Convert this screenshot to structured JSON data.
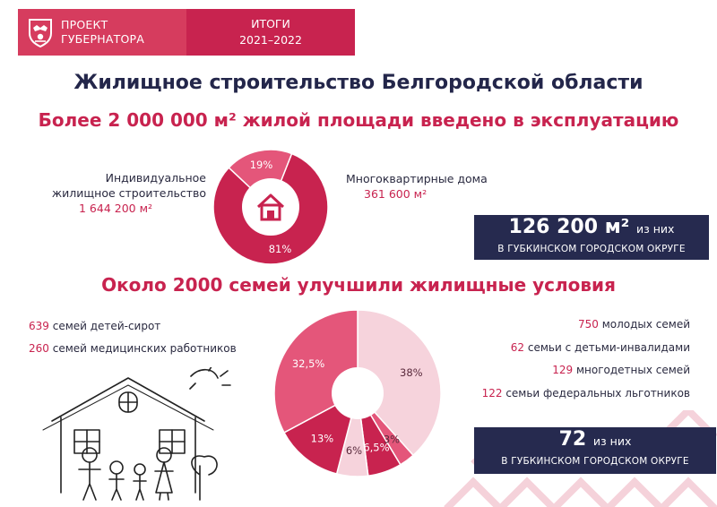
{
  "header": {
    "project_line1": "ПРОЕКТ",
    "project_line2": "ГУБЕРНАТОРА",
    "results_line1": "ИТОГИ",
    "results_line2": "2021–2022"
  },
  "title": "Жилищное строительство Белгородской области",
  "section1": {
    "title": "Более 2 000 000 м² жилой площади введено в эксплуатацию",
    "individual_label_line1": "Индивидуальное",
    "individual_label_line2": "жилищное строительство",
    "individual_value": "1 644 200 м²",
    "apartments_label": "Многоквартирные дома",
    "apartments_value": "361 600 м²",
    "stat_value": "126 200 м²",
    "stat_suffix": "из них",
    "stat_caption": "В ГУБКИНСКОМ ГОРОДСКОМ ОКРУГЕ"
  },
  "section2": {
    "title": "Около 2000 семей улучшили жилищные условия",
    "left_items": [
      {
        "num": "639",
        "text": "семей детей-сирот"
      },
      {
        "num": "260",
        "text": "семей медицинских работников"
      }
    ],
    "right_items": [
      {
        "num": "750",
        "text": "молодых семей"
      },
      {
        "num": "62",
        "text": "семьи с детьми-инвалидами"
      },
      {
        "num": "129",
        "text": "многодетных семей"
      },
      {
        "num": "122",
        "text": "семьи федеральных льготников"
      }
    ],
    "stat_value": "72",
    "stat_suffix": "из них",
    "stat_caption": "В ГУБКИНСКОМ ГОРОДСКОМ ОКРУГЕ"
  },
  "colors": {
    "crimson": "#c8234f",
    "pink": "#e4567a",
    "light_pink": "#f6d3dc",
    "navy": "#262a4f"
  },
  "icons": [
    "belgorod-coat-of-arms-icon",
    "house-icon"
  ],
  "chart_data": [
    {
      "type": "pie",
      "subtype": "donut",
      "categories": [
        "Индивидуальное жилищное строительство",
        "Многоквартирные дома"
      ],
      "values": [
        81,
        19
      ],
      "value_labels": [
        "81%",
        "19%"
      ],
      "colors": [
        "#c8234f",
        "#e4567a"
      ]
    },
    {
      "type": "pie",
      "subtype": "donut",
      "values": [
        38,
        3,
        6.5,
        6,
        13,
        32.5
      ],
      "value_labels": [
        "38%",
        "3%",
        "6,5%",
        "6%",
        "13%",
        "32,5%"
      ],
      "colors": [
        "#f6d3dc",
        "#e4567a",
        "#c8234f",
        "#f6d3dc",
        "#c8234f",
        "#e4567a"
      ]
    }
  ]
}
